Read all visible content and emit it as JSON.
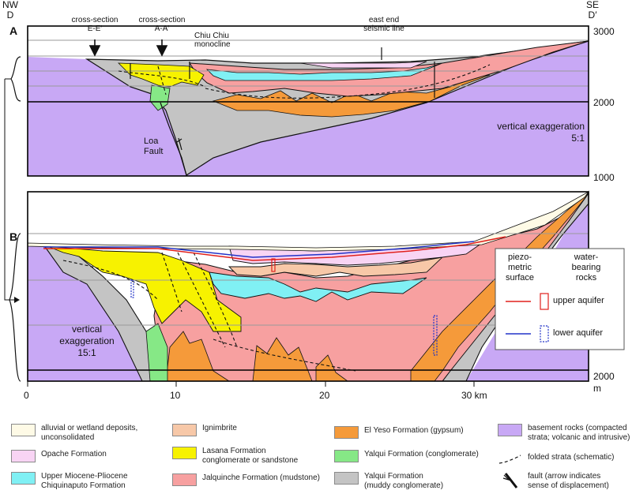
{
  "corners": {
    "left": "NW\nD",
    "right": "SE\nD′"
  },
  "panelA": {
    "label": "A",
    "callouts": {
      "cs_ee": "cross-section\nE-E′",
      "cs_aa": "cross-section\nA-A′",
      "chiu": "Chiu Chiu\nmonocline",
      "seismic": "east end\nseismic line"
    },
    "fault_label": "Loa\nFault",
    "exaggeration": "vertical exaggeration\n5:1",
    "elev_labels": [
      "3000",
      "2000",
      "1000"
    ]
  },
  "panelB": {
    "label": "B",
    "exaggeration": "vertical\nexaggeration\n15:1",
    "elev_label": "2000",
    "elev_unit": "m",
    "key": {
      "piezo_header": "piezo-\nmetric\nsurface",
      "water_header": "water-\nbearing\nrocks",
      "upper": "upper aquifer",
      "lower": "lower aquifer",
      "upper_color": "#e0201c",
      "lower_color": "#2233c8"
    }
  },
  "x_axis": {
    "ticks": [
      "0",
      "10",
      "20",
      "30 km"
    ]
  },
  "colors": {
    "basement": "#c8a8f5",
    "yalqui_muddy": "#c4c4c4",
    "jalquinche": "#f7a0a0",
    "el_yeso": "#f59a3a",
    "lasana": "#f7f200",
    "yalqui_cong": "#86e886",
    "ignimbrite": "#f7c8a8",
    "opache": "#f8d4f4",
    "chiquinaputo": "#80f0f4",
    "alluvial": "#fefae6"
  },
  "legend": [
    {
      "label": "alluvial or wetland deposits,\nunconsolidated",
      "color": "#fefae6"
    },
    {
      "label": "Opache Formation",
      "color": "#f8d4f4"
    },
    {
      "label": "Upper Miocene-Pliocene\nChiquinaputo Formation",
      "color": "#80f0f4"
    },
    {
      "label": "Ignimbrite",
      "color": "#f7c8a8"
    },
    {
      "label": "Lasana Formation\nconglomerate or sandstone",
      "color": "#f7f200"
    },
    {
      "label": "Jalquinche Formation (mudstone)",
      "color": "#f7a0a0"
    },
    {
      "label": "El Yeso Formation (gypsum)",
      "color": "#f59a3a"
    },
    {
      "label": "Yalqui Formation (conglomerate)",
      "color": "#86e886"
    },
    {
      "label": "Yalqui Formation\n(muddy conglomerate)",
      "color": "#c4c4c4"
    },
    {
      "label": "basement rocks (compacted\nstrata; volcanic and intrusive)",
      "color": "#c8a8f5"
    },
    {
      "label": "folded strata (schematic)",
      "symbol": "dashed-line"
    },
    {
      "label": "fault (arrow indicates\nsense of displacement)",
      "symbol": "fault-arrow"
    }
  ]
}
